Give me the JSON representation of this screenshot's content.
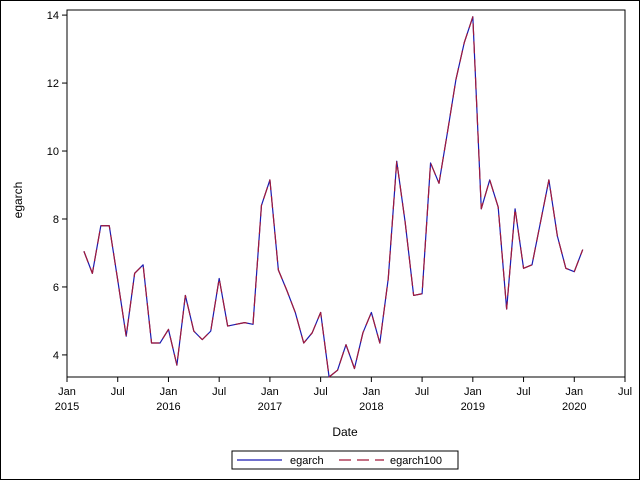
{
  "chart_data": {
    "type": "line",
    "title": "",
    "xlabel": "Date",
    "ylabel": "egarch",
    "ylim": [
      3.35,
      14.15
    ],
    "yticks": [
      4,
      6,
      8,
      10,
      12,
      14
    ],
    "xlim": [
      "2015-01",
      "2020-07"
    ],
    "xticks": [
      {
        "date": "2015-01",
        "month": "Jan",
        "year": "2015"
      },
      {
        "date": "2015-07",
        "month": "Jul",
        "year": ""
      },
      {
        "date": "2016-01",
        "month": "Jan",
        "year": "2016"
      },
      {
        "date": "2016-07",
        "month": "Jul",
        "year": ""
      },
      {
        "date": "2017-01",
        "month": "Jan",
        "year": "2017"
      },
      {
        "date": "2017-07",
        "month": "Jul",
        "year": ""
      },
      {
        "date": "2018-01",
        "month": "Jan",
        "year": "2018"
      },
      {
        "date": "2018-07",
        "month": "Jul",
        "year": ""
      },
      {
        "date": "2019-01",
        "month": "Jan",
        "year": "2019"
      },
      {
        "date": "2019-07",
        "month": "Jul",
        "year": ""
      },
      {
        "date": "2020-01",
        "month": "Jan",
        "year": "2020"
      },
      {
        "date": "2020-07",
        "month": "Jul",
        "year": ""
      }
    ],
    "grid": false,
    "legend_position": "bottom",
    "x": [
      "2015-03",
      "2015-04",
      "2015-05",
      "2015-06",
      "2015-07",
      "2015-08",
      "2015-09",
      "2015-10",
      "2015-11",
      "2015-12",
      "2016-01",
      "2016-02",
      "2016-03",
      "2016-04",
      "2016-05",
      "2016-06",
      "2016-07",
      "2016-08",
      "2016-09",
      "2016-10",
      "2016-11",
      "2016-12",
      "2017-01",
      "2017-02",
      "2017-03",
      "2017-04",
      "2017-05",
      "2017-06",
      "2017-07",
      "2017-08",
      "2017-09",
      "2017-10",
      "2017-11",
      "2017-12",
      "2018-01",
      "2018-02",
      "2018-03",
      "2018-04",
      "2018-05",
      "2018-06",
      "2018-07",
      "2018-08",
      "2018-09",
      "2018-10",
      "2018-11",
      "2018-12",
      "2019-01",
      "2019-02",
      "2019-03",
      "2019-04",
      "2019-05",
      "2019-06",
      "2019-07",
      "2019-08",
      "2019-09",
      "2019-10",
      "2019-11",
      "2019-12",
      "2020-01",
      "2020-02"
    ],
    "series": [
      {
        "name": "egarch",
        "color": "#1a1ab0",
        "dash": "solid",
        "values": [
          7.05,
          6.4,
          7.8,
          7.8,
          6.2,
          4.55,
          6.4,
          6.65,
          4.35,
          4.35,
          4.75,
          3.7,
          5.75,
          4.7,
          4.45,
          4.7,
          6.25,
          4.85,
          4.9,
          4.95,
          4.9,
          8.4,
          9.15,
          6.5,
          5.9,
          5.25,
          4.35,
          4.65,
          5.25,
          3.35,
          3.55,
          4.3,
          3.6,
          4.65,
          5.25,
          4.35,
          6.25,
          9.7,
          7.9,
          5.75,
          5.8,
          9.65,
          9.05,
          10.55,
          12.1,
          13.2,
          13.95,
          8.3,
          9.15,
          8.35,
          5.35,
          8.3,
          6.55,
          6.65,
          7.9,
          9.15,
          7.5,
          6.55,
          6.45,
          7.1
        ]
      },
      {
        "name": "egarch100",
        "color": "#a01a3a",
        "dash": "dashed",
        "values": [
          7.05,
          6.4,
          7.8,
          7.8,
          6.2,
          4.55,
          6.4,
          6.65,
          4.35,
          4.35,
          4.75,
          3.7,
          5.75,
          4.7,
          4.45,
          4.7,
          6.25,
          4.85,
          4.9,
          4.95,
          4.9,
          8.4,
          9.15,
          6.5,
          5.9,
          5.25,
          4.35,
          4.65,
          5.25,
          3.35,
          3.55,
          4.3,
          3.6,
          4.65,
          5.25,
          4.35,
          6.25,
          9.7,
          7.9,
          5.75,
          5.8,
          9.65,
          9.05,
          10.55,
          12.1,
          13.2,
          13.95,
          8.3,
          9.15,
          8.35,
          5.35,
          8.3,
          6.55,
          6.65,
          7.9,
          9.15,
          7.5,
          6.55,
          6.45,
          7.1
        ]
      }
    ]
  }
}
